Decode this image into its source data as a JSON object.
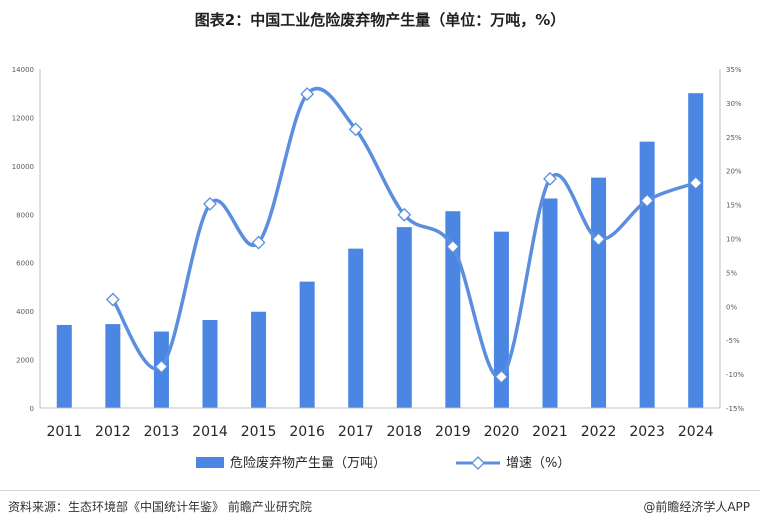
{
  "title": "图表2：中国工业危险废弃物产生量（单位：万吨，%）",
  "source": "资料来源：生态环境部《中国统计年鉴》 前瞻产业研究院",
  "credit": "@前瞻经济学人APP",
  "colors": {
    "bar": "#4a86e2",
    "line": "#5b8ede",
    "marker_fill": "#ffffff",
    "marker_stroke": "#5b8ede"
  },
  "chart_data": {
    "type": "bar",
    "categories": [
      "2011",
      "2012",
      "2013",
      "2014",
      "2015",
      "2016",
      "2017",
      "2018",
      "2019",
      "2020",
      "2021",
      "2022",
      "2023",
      "2024"
    ],
    "series": [
      {
        "name": "危险废弃物产生量（万吨）",
        "type": "bar",
        "axis": "left",
        "values": [
          3430,
          3465,
          3157,
          3634,
          3976,
          5219,
          6581,
          7470,
          8126,
          7282,
          8653,
          9514,
          11000,
          13000
        ]
      },
      {
        "name": "增速（%）",
        "type": "line",
        "axis": "right",
        "values": [
          null,
          1.0,
          -8.9,
          15.1,
          9.4,
          31.3,
          26.1,
          13.5,
          8.8,
          -10.4,
          18.8,
          9.9,
          15.6,
          18.2
        ]
      }
    ],
    "left_axis": {
      "ylim": [
        0,
        14000
      ],
      "ticks": [
        "0",
        "2000",
        "4000",
        "6000",
        "8000",
        "10000",
        "12000",
        "14000"
      ]
    },
    "right_axis": {
      "ylim": [
        -15,
        35
      ],
      "ticks": [
        "-15%",
        "-10%",
        "-5%",
        "0%",
        "5%",
        "10%",
        "15%",
        "20%",
        "25%",
        "30%",
        "35%"
      ]
    },
    "grid": false,
    "legend": "bottom-center"
  }
}
